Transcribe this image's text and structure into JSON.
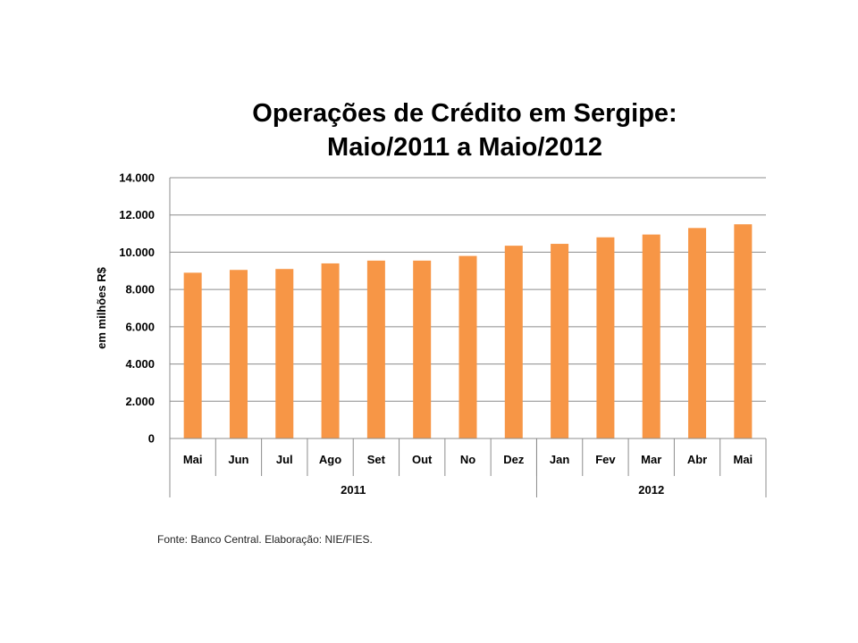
{
  "chart_data": {
    "type": "bar",
    "title_lines": [
      "Operações de Crédito em Sergipe:",
      "Maio/2011 a Maio/2012"
    ],
    "ylabel": "em milhões R$",
    "xlabel": "",
    "ylim": [
      0,
      14000
    ],
    "yticks": [
      0,
      2000,
      4000,
      6000,
      8000,
      10000,
      12000,
      14000
    ],
    "ytick_labels": [
      "0",
      "2.000",
      "4.000",
      "6.000",
      "8.000",
      "10.000",
      "12.000",
      "14.000"
    ],
    "categories": [
      "Mai",
      "Jun",
      "Jul",
      "Ago",
      "Set",
      "Out",
      "No",
      "Dez",
      "Jan",
      "Fev",
      "Mar",
      "Abr",
      "Mai"
    ],
    "groups": [
      {
        "label": "2011",
        "count": 8
      },
      {
        "label": "2012",
        "count": 5
      }
    ],
    "values": [
      8900,
      9050,
      9100,
      9400,
      9550,
      9550,
      9800,
      10350,
      10450,
      10800,
      10950,
      11300,
      11500
    ],
    "bar_color": "#F79646",
    "gridlines": true,
    "legend": "none"
  },
  "footer": {
    "source": "Fonte: Banco Central. Elaboração: NIE/FIES."
  }
}
